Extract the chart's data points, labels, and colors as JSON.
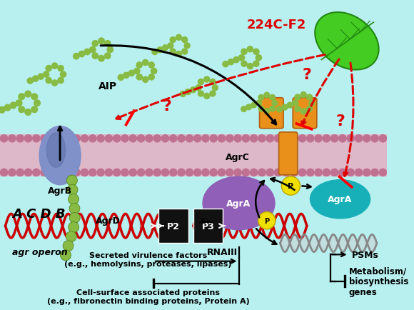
{
  "bg_color": "#b8f0f0",
  "membrane_color": "#ddb8c8",
  "membrane_dot_color": "#c07090",
  "agrb_color": "#8090c8",
  "agrb_dark": "#6070a8",
  "agrc_color": "#e8901a",
  "agra_teal": "#18b0b8",
  "agra_purple": "#9060b8",
  "aip_color": "#88bb44",
  "aip_dark": "#558822",
  "dna_red": "#cc0000",
  "dna_gray_light": "#cccccc",
  "dna_gray_dark": "#888888",
  "p_yellow": "#f0e000",
  "p_yellow_edge": "#b8a800",
  "p2p3_fill": "#111111",
  "leaf_light": "#44cc22",
  "leaf_dark": "#228811",
  "red_arrow": "#dd0000",
  "title": "224C-F2",
  "lbl_aip": "AIP",
  "lbl_agrd": "AgrD",
  "lbl_agrb": "AgrB",
  "lbl_agrc": "AgrC",
  "lbl_agra": "AgrA",
  "lbl_acdb": "A C D B",
  "lbl_operon": "agr operon",
  "lbl_rnaiii": "RNAIII",
  "lbl_p2": "P2",
  "lbl_p3": "P3",
  "lbl_psms": "PSMs",
  "lbl_metab": "Metabolism/\nbiosynthesis\ngenes",
  "lbl_secreted": "Secreted virulence factors\n(e.g., hemolysins, proteases, lipases)",
  "lbl_surface": "Cell-surface associated proteins\n(e.g., fibronectin binding proteins, Protein A)"
}
